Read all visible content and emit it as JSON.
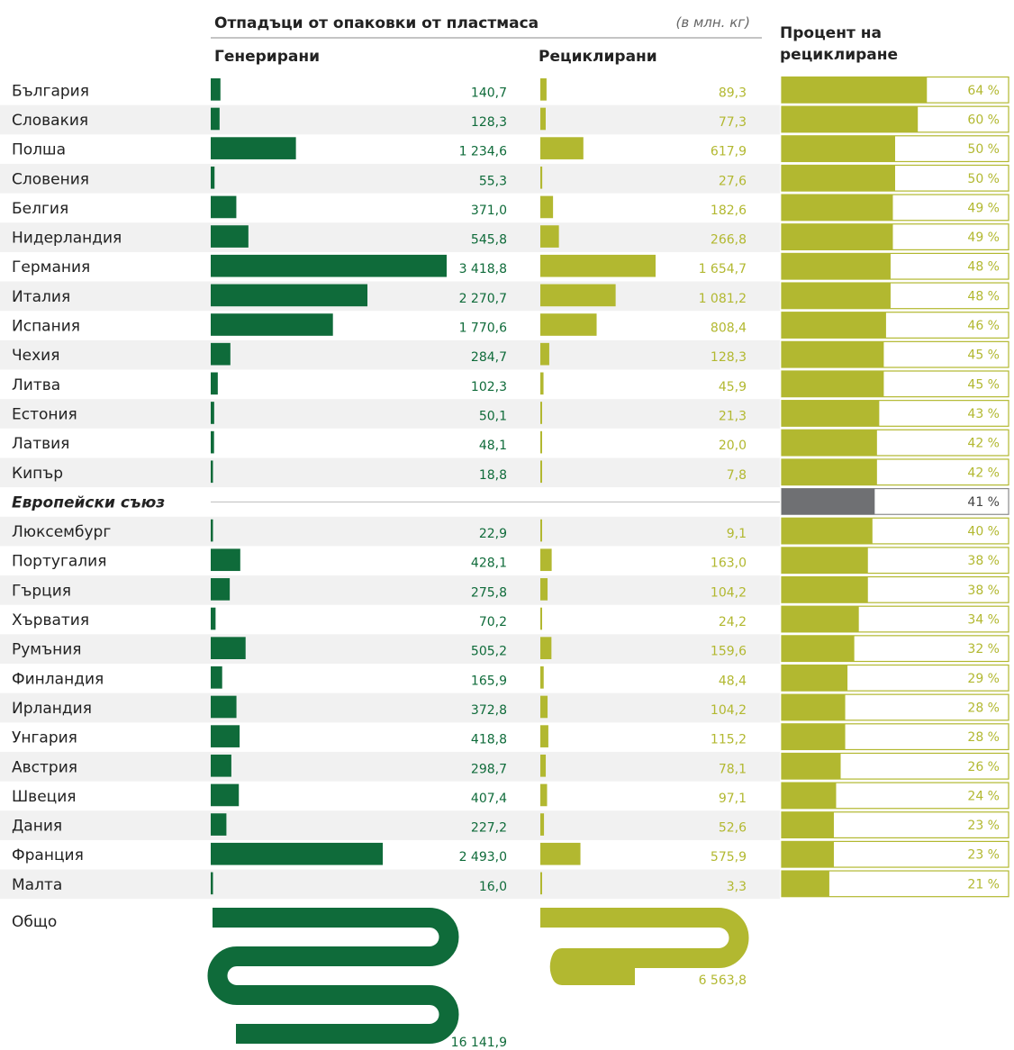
{
  "chart_data": {
    "type": "bar",
    "title": "Отпадъци от опаковки от пластмаса",
    "unit": "(в млн. кг)",
    "headers": {
      "generated": "Генерирани",
      "recycled": "Рециклирани",
      "rate_line1": "Процент на",
      "rate_line2": "рециклиране"
    },
    "categories": [
      "България",
      "Словакия",
      "Полша",
      "Словения",
      "Белгия",
      "Нидерландия",
      "Германия",
      "Италия",
      "Испания",
      "Чехия",
      "Литва",
      "Естония",
      "Латвия",
      "Кипър",
      "Европейски съюз",
      "Люксембург",
      "Португалия",
      "Гърция",
      "Хърватия",
      "Румъния",
      "Финландия",
      "Ирландия",
      "Унгария",
      "Австрия",
      "Швеция",
      "Дания",
      "Франция",
      "Малта"
    ],
    "generated_values": [
      140.7,
      128.3,
      1234.6,
      55.3,
      371.0,
      545.8,
      3418.8,
      2270.7,
      1770.6,
      284.7,
      102.3,
      50.1,
      48.1,
      18.8,
      null,
      22.9,
      428.1,
      275.8,
      70.2,
      505.2,
      165.9,
      372.8,
      418.8,
      298.7,
      407.4,
      227.2,
      2493.0,
      16.0
    ],
    "generated_labels": [
      "140,7",
      "128,3",
      "1 234,6",
      "55,3",
      "371,0",
      "545,8",
      "3 418,8",
      "2 270,7",
      "1 770,6",
      "284,7",
      "102,3",
      "50,1",
      "48,1",
      "18,8",
      "",
      "22,9",
      "428,1",
      "275,8",
      "70,2",
      "505,2",
      "165,9",
      "372,8",
      "418,8",
      "298,7",
      "407,4",
      "227,2",
      "2 493,0",
      "16,0"
    ],
    "recycled_values": [
      89.3,
      77.3,
      617.9,
      27.6,
      182.6,
      266.8,
      1654.7,
      1081.2,
      808.4,
      128.3,
      45.9,
      21.3,
      20.0,
      7.8,
      null,
      9.1,
      163.0,
      104.2,
      24.2,
      159.6,
      48.4,
      104.2,
      115.2,
      78.1,
      97.1,
      52.6,
      575.9,
      3.3
    ],
    "recycled_labels": [
      "89,3",
      "77,3",
      "617,9",
      "27,6",
      "182,6",
      "266,8",
      "1 654,7",
      "1 081,2",
      "808,4",
      "128,3",
      "45,9",
      "21,3",
      "20,0",
      "7,8",
      "",
      "9,1",
      "163,0",
      "104,2",
      "24,2",
      "159,6",
      "48,4",
      "104,2",
      "115,2",
      "78,1",
      "97,1",
      "52,6",
      "575,9",
      "3,3"
    ],
    "rate_values": [
      64,
      60,
      50,
      50,
      49,
      49,
      48,
      48,
      46,
      45,
      45,
      43,
      42,
      42,
      41,
      40,
      38,
      38,
      34,
      32,
      29,
      28,
      28,
      26,
      24,
      23,
      23,
      21
    ],
    "rate_labels": [
      "64 %",
      "60 %",
      "50 %",
      "50 %",
      "49 %",
      "49 %",
      "48 %",
      "48 %",
      "46 %",
      "45 %",
      "45 %",
      "43 %",
      "42 %",
      "42 %",
      "41 %",
      "40 %",
      "38 %",
      "38 %",
      "34 %",
      "32 %",
      "29 %",
      "28 %",
      "28 %",
      "26 %",
      "24 %",
      "23 %",
      "23 %",
      "21 %"
    ],
    "eu_index": 14,
    "total": {
      "label": "Общо",
      "generated": 16141.9,
      "generated_label": "16 141,9",
      "recycled": 6563.8,
      "recycled_label": "6 563,8"
    },
    "colors": {
      "generated": "#0f6b3a",
      "recycled": "#b2b830",
      "eu": "#6f7073",
      "stripe": "#f1f1f1"
    }
  }
}
